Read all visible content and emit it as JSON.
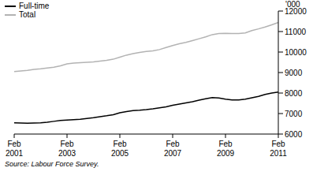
{
  "chart_data": {
    "type": "line",
    "ylabel": "'000",
    "source": "Source: Labour Force Survey.",
    "legend": "upper left",
    "grid": false,
    "categories": [
      "Feb 2001",
      null,
      null,
      null,
      null,
      null,
      null,
      null,
      "Feb 2003",
      null,
      null,
      null,
      null,
      null,
      null,
      null,
      "Feb 2005",
      null,
      null,
      null,
      null,
      null,
      null,
      null,
      "Feb 2007",
      null,
      null,
      null,
      null,
      null,
      null,
      null,
      "Feb 2009",
      null,
      null,
      null,
      null,
      null,
      null,
      null,
      "Feb 2011"
    ],
    "ylim": [
      6000,
      12000
    ],
    "yticks": [
      6000,
      7000,
      8000,
      9000,
      10000,
      11000,
      12000
    ],
    "series": [
      {
        "name": "Full-time",
        "color": "#000000",
        "values": [
          6550,
          6540,
          6530,
          6540,
          6550,
          6580,
          6620,
          6660,
          6680,
          6700,
          6720,
          6760,
          6800,
          6850,
          6890,
          6940,
          7040,
          7100,
          7140,
          7160,
          7190,
          7230,
          7280,
          7330,
          7400,
          7460,
          7520,
          7580,
          7650,
          7720,
          7780,
          7760,
          7700,
          7660,
          7660,
          7700,
          7770,
          7840,
          7930,
          8000,
          8050
        ]
      },
      {
        "name": "Total",
        "color": "#b3b3b3",
        "values": [
          9050,
          9080,
          9110,
          9150,
          9180,
          9220,
          9260,
          9330,
          9420,
          9460,
          9480,
          9500,
          9520,
          9560,
          9600,
          9650,
          9750,
          9850,
          9920,
          9980,
          10030,
          10060,
          10120,
          10220,
          10320,
          10400,
          10470,
          10560,
          10650,
          10740,
          10850,
          10900,
          10910,
          10900,
          10900,
          10930,
          11050,
          11130,
          11220,
          11330,
          11440
        ]
      }
    ]
  }
}
